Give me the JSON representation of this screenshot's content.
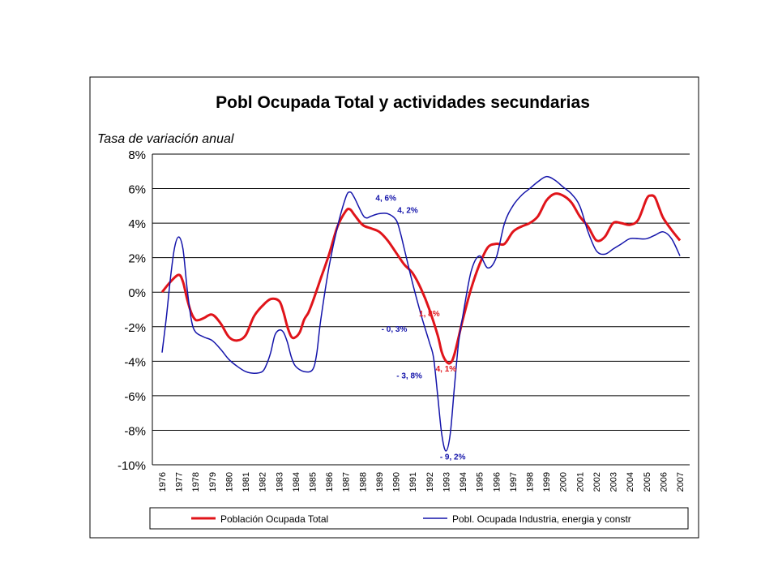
{
  "chart_data": {
    "type": "line",
    "title": "Pobl Ocupada Total y actividades secundarias",
    "ylabel": "Tasa de variación anual",
    "xlabel": "",
    "ylim": [
      -10,
      8
    ],
    "yticks": [
      "8%",
      "6%",
      "4%",
      "2%",
      "0%",
      "-2%",
      "-4%",
      "-6%",
      "-8%",
      "-10%"
    ],
    "ytick_values": [
      8,
      6,
      4,
      2,
      0,
      -2,
      -4,
      -6,
      -8,
      -10
    ],
    "categories": [
      "1976",
      "1977",
      "1978",
      "1979",
      "1980",
      "1981",
      "1982",
      "1983",
      "1984",
      "1985",
      "1986",
      "1987",
      "1988",
      "1989",
      "1990",
      "1991",
      "1992",
      "1993",
      "1994",
      "1995",
      "1996",
      "1997",
      "1998",
      "1999",
      "2000",
      "2001",
      "2002",
      "2003",
      "2004",
      "2005",
      "2006",
      "2007"
    ],
    "grid": true,
    "legend_position": "bottom",
    "series": [
      {
        "name": "Población Ocupada Total",
        "color": "#e0141a",
        "x": [
          1976.0,
          1976.5,
          1977.0,
          1977.25,
          1977.5,
          1977.75,
          1978.0,
          1978.25,
          1978.5,
          1979.0,
          1979.5,
          1980.0,
          1980.5,
          1981.0,
          1981.5,
          1982.0,
          1982.5,
          1983.0,
          1983.25,
          1983.5,
          1983.75,
          1984.0,
          1984.25,
          1984.5,
          1984.75,
          1985.0,
          1985.5,
          1986.0,
          1986.5,
          1987.0,
          1987.25,
          1987.5,
          1988.0,
          1988.5,
          1989.0,
          1989.5,
          1990.0,
          1990.5,
          1991.0,
          1991.5,
          1992.0,
          1992.5,
          1992.75,
          1993.0,
          1993.25,
          1993.5,
          1994.0,
          1994.5,
          1995.0,
          1995.5,
          1996.0,
          1996.5,
          1997.0,
          1997.5,
          1998.0,
          1998.5,
          1999.0,
          1999.5,
          2000.0,
          2000.5,
          2001.0,
          2001.5,
          2002.0,
          2002.5,
          2003.0,
          2003.5,
          2004.0,
          2004.5,
          2005.0,
          2005.25,
          2005.5,
          2005.75,
          2006.0,
          2006.5,
          2007.0
        ],
        "y": [
          0.0,
          0.6,
          1.0,
          0.6,
          -0.4,
          -1.2,
          -1.6,
          -1.6,
          -1.5,
          -1.3,
          -1.8,
          -2.6,
          -2.8,
          -2.5,
          -1.4,
          -0.8,
          -0.4,
          -0.5,
          -1.1,
          -2.0,
          -2.6,
          -2.6,
          -2.3,
          -1.6,
          -1.2,
          -0.6,
          0.8,
          2.2,
          3.8,
          4.7,
          4.8,
          4.5,
          3.9,
          3.7,
          3.5,
          3.0,
          2.3,
          1.6,
          1.1,
          0.2,
          -1.0,
          -2.5,
          -3.5,
          -4.0,
          -4.1,
          -3.6,
          -1.6,
          0.2,
          1.6,
          2.6,
          2.8,
          2.8,
          3.5,
          3.8,
          4.0,
          4.4,
          5.3,
          5.7,
          5.6,
          5.2,
          4.4,
          3.8,
          3.0,
          3.2,
          4.0,
          4.0,
          3.9,
          4.2,
          5.4,
          5.6,
          5.5,
          4.9,
          4.3,
          3.6,
          3.0
        ]
      },
      {
        "name": "Pobl. Ocupada Industria, energia y constr",
        "color": "#1414aa",
        "x": [
          1976.0,
          1976.25,
          1976.5,
          1976.75,
          1977.0,
          1977.25,
          1977.5,
          1977.75,
          1978.0,
          1978.5,
          1979.0,
          1979.5,
          1980.0,
          1980.5,
          1981.0,
          1981.5,
          1982.0,
          1982.25,
          1982.5,
          1982.75,
          1983.0,
          1983.25,
          1983.5,
          1983.75,
          1984.0,
          1984.5,
          1985.0,
          1985.25,
          1985.5,
          1986.0,
          1986.5,
          1987.0,
          1987.25,
          1987.5,
          1988.0,
          1988.25,
          1988.5,
          1989.0,
          1989.5,
          1990.0,
          1990.25,
          1990.5,
          1991.0,
          1991.5,
          1992.0,
          1992.25,
          1992.5,
          1992.75,
          1993.0,
          1993.25,
          1993.5,
          1993.75,
          1994.0,
          1994.5,
          1995.0,
          1995.5,
          1996.0,
          1996.5,
          1997.0,
          1997.5,
          1998.0,
          1998.5,
          1999.0,
          1999.5,
          2000.0,
          2000.5,
          2001.0,
          2001.5,
          2002.0,
          2002.5,
          2003.0,
          2003.5,
          2004.0,
          2004.5,
          2005.0,
          2005.5,
          2006.0,
          2006.5,
          2007.0
        ],
        "y": [
          -3.5,
          -1.5,
          0.8,
          2.6,
          3.2,
          2.5,
          0.2,
          -1.6,
          -2.3,
          -2.6,
          -2.8,
          -3.3,
          -3.9,
          -4.3,
          -4.6,
          -4.7,
          -4.6,
          -4.2,
          -3.5,
          -2.5,
          -2.2,
          -2.3,
          -2.9,
          -3.8,
          -4.3,
          -4.6,
          -4.5,
          -3.6,
          -1.6,
          1.5,
          3.8,
          5.5,
          5.8,
          5.5,
          4.5,
          4.3,
          4.4,
          4.55,
          4.55,
          4.2,
          3.5,
          2.5,
          0.5,
          -1.3,
          -2.9,
          -3.8,
          -6.0,
          -8.3,
          -9.2,
          -8.2,
          -5.5,
          -2.9,
          -1.4,
          1.2,
          2.1,
          1.4,
          2.0,
          4.0,
          5.0,
          5.6,
          6.0,
          6.4,
          6.7,
          6.5,
          6.1,
          5.7,
          5.0,
          3.5,
          2.4,
          2.2,
          2.5,
          2.8,
          3.1,
          3.1,
          3.1,
          3.3,
          3.5,
          3.1,
          2.1
        ]
      }
    ],
    "annotations": [
      {
        "text": "4, 6%",
        "x": 1989.4,
        "y": 5.3,
        "color": "#1414aa"
      },
      {
        "text": "4, 2%",
        "x": 1990.7,
        "y": 4.6,
        "color": "#1414aa"
      },
      {
        "text": "1, 8%",
        "x": 1992.0,
        "y": -1.4,
        "color": "#e0141a"
      },
      {
        "text": "- 0, 3%",
        "x": 1989.9,
        "y": -2.3,
        "color": "#1414aa"
      },
      {
        "text": "4, 1%",
        "x": 1993.0,
        "y": -4.6,
        "color": "#e0141a"
      },
      {
        "text": "- 3, 8%",
        "x": 1990.8,
        "y": -5.0,
        "color": "#1414aa"
      },
      {
        "text": "- 9, 2%",
        "x": 1993.4,
        "y": -9.7,
        "color": "#1414aa"
      }
    ]
  }
}
